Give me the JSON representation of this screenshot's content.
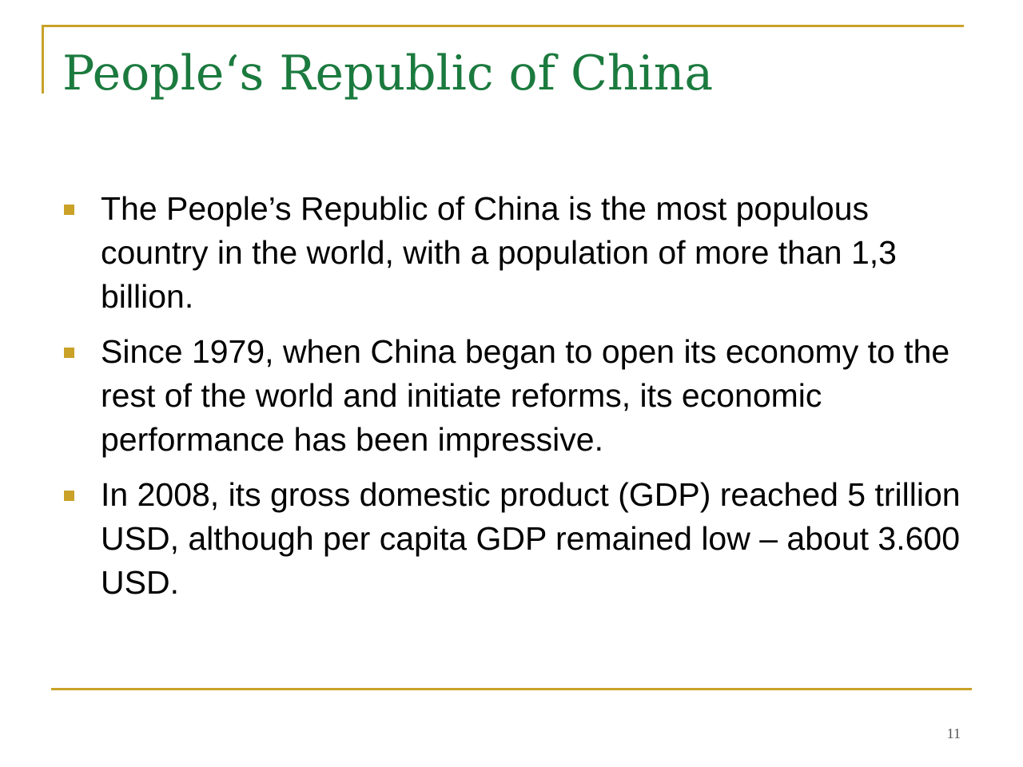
{
  "slide": {
    "title": "People‘s Republic of China",
    "bullets": [
      "The People’s Republic of China is the most populous country in the world, with a population of more than 1,3 billion.",
      "Since 1979, when China began to open its economy to the rest of the world and initiate reforms, its economic performance has been impressive.",
      "In 2008, its gross domestic product (GDP) reached 5 trillion USD, although per capita GDP remained low – about 3.600 USD."
    ],
    "page_number": "11"
  },
  "colors": {
    "title": "#1b7a3e",
    "accent": "#c9a227",
    "text": "#000000"
  }
}
